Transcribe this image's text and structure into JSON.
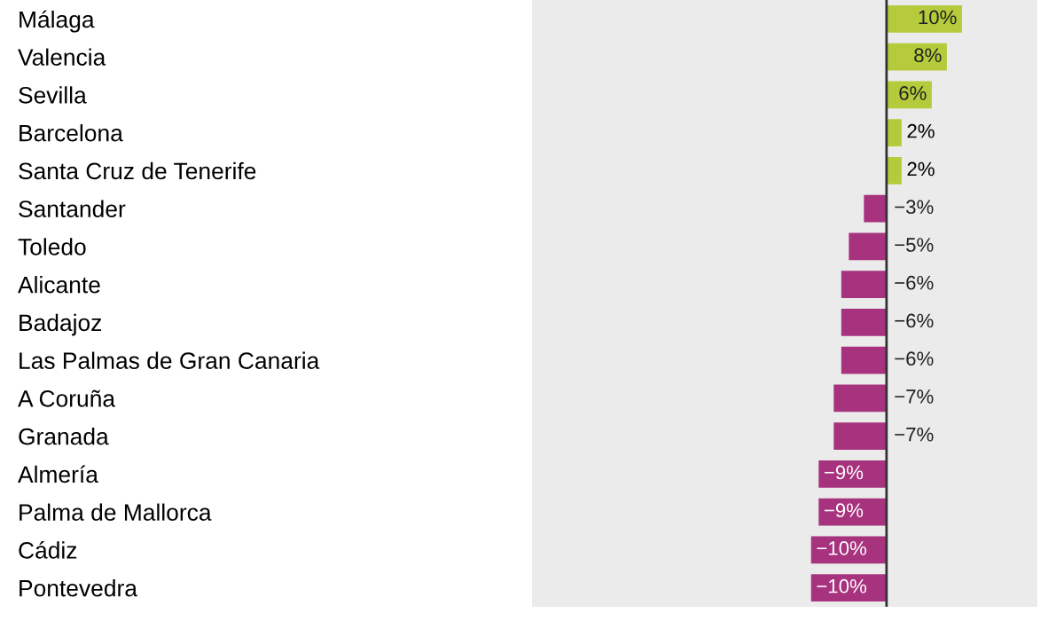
{
  "chart_data": {
    "type": "bar",
    "orientation": "horizontal",
    "categories": [
      "Málaga",
      "Valencia",
      "Sevilla",
      "Barcelona",
      "Santa Cruz de Tenerife",
      "Santander",
      "Toledo",
      "Alicante",
      "Badajoz",
      "Las Palmas de Gran Canaria",
      "A Coruña",
      "Granada",
      "Almería",
      "Palma de Mallorca",
      "Cádiz",
      "Pontevedra"
    ],
    "values": [
      10,
      8,
      6,
      2,
      2,
      -3,
      -5,
      -6,
      -6,
      -6,
      -7,
      -7,
      -9,
      -9,
      -10,
      -10
    ],
    "value_labels": [
      "10%",
      "8%",
      "6%",
      "2%",
      "2%",
      "−3%",
      "−5%",
      "−6%",
      "−6%",
      "−6%",
      "−7%",
      "−7%",
      "−9%",
      "−9%",
      "−10%",
      "−10%"
    ],
    "colors": [
      "#b5cb3c",
      "#b5cb3c",
      "#b5cb3c",
      "#b5cb3c",
      "#b5cb3c",
      "#a7337f",
      "#a7337f",
      "#a7337f",
      "#a7337f",
      "#a7337f",
      "#a7337f",
      "#a7337f",
      "#a7337f",
      "#a7337f",
      "#a7337f",
      "#a7337f"
    ],
    "xlim": [
      -47,
      20
    ],
    "ref_lines": [
      {
        "axis": "x",
        "value": 0,
        "color": "#333333"
      }
    ],
    "tick_labels": "y",
    "grid": false,
    "legend": false
  }
}
